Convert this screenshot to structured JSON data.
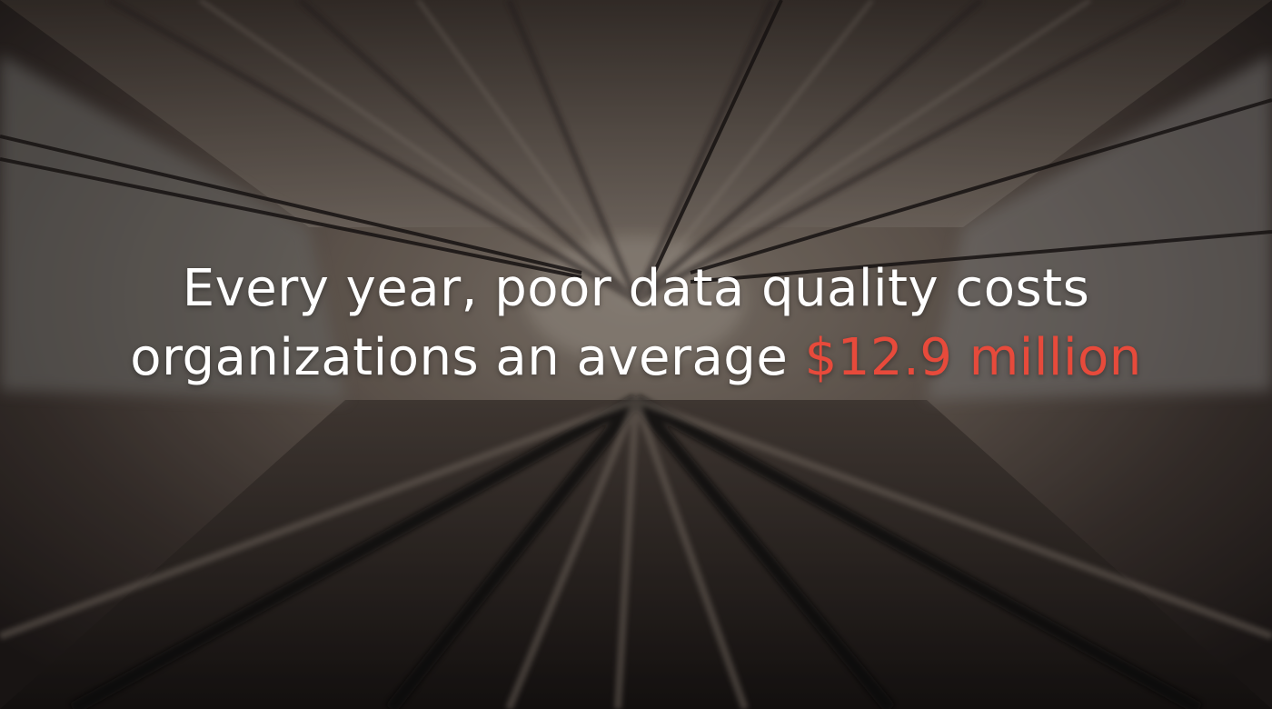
{
  "headline": {
    "line1": "Every year, poor data quality costs",
    "line2_prefix": "organizations an average ",
    "highlight": "$12.9 million"
  },
  "colors": {
    "text": "#ffffff",
    "highlight": "#e74a3b"
  },
  "background": {
    "image": "motion-blurred-tunnel-photo"
  }
}
